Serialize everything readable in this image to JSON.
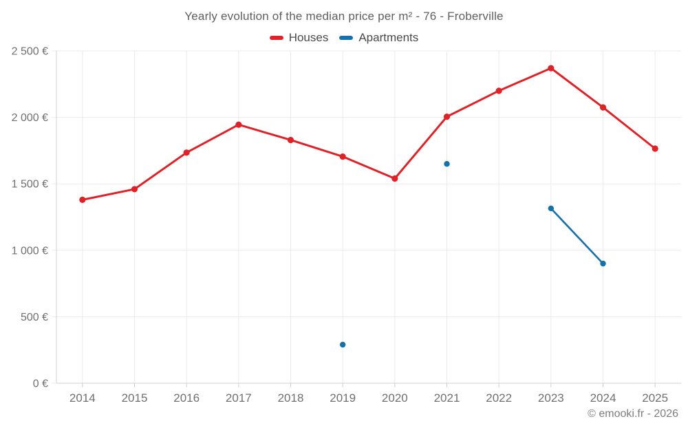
{
  "page": {
    "background": "#ffffff"
  },
  "chart_data": {
    "type": "line",
    "title": "Yearly evolution of the median price per m² - 76 - Froberville",
    "categories": [
      "2014",
      "2015",
      "2016",
      "2017",
      "2018",
      "2019",
      "2020",
      "2021",
      "2022",
      "2023",
      "2024",
      "2025"
    ],
    "series": [
      {
        "name": "Houses",
        "color": "#e02127",
        "line_width": 3,
        "point_radius": 4.6,
        "values": [
          1380,
          1460,
          1735,
          1945,
          1830,
          1705,
          1540,
          2005,
          2200,
          2370,
          2075,
          1765
        ]
      },
      {
        "name": "Apartments",
        "color": "#1571a9",
        "line_width": 2.6,
        "point_radius": 4.2,
        "values": [
          null,
          null,
          null,
          null,
          null,
          290,
          null,
          1650,
          null,
          1315,
          900,
          null
        ]
      }
    ],
    "xlabel": "",
    "ylabel": "",
    "ylim": [
      0,
      2500
    ],
    "yticks": [
      0,
      500,
      1000,
      1500,
      2000,
      2500
    ],
    "ytick_labels": [
      "0 €",
      "500 €",
      "1 000 €",
      "1 500 €",
      "2 000 €",
      "2 500 €"
    ],
    "grid": true,
    "legend_position": "top",
    "attribution": "© emooki.fr - 2026",
    "colors": {
      "grid_line": "#ebebeb",
      "axis_line": "#d2d2d2",
      "tick_mark": "#cfcfcf",
      "axis_label": "#6f6f6f"
    }
  }
}
